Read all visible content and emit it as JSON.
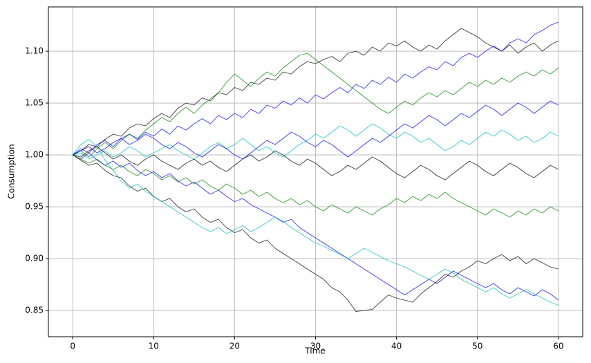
{
  "chart_data": {
    "type": "line",
    "xlabel": "Time",
    "ylabel": "Consumption",
    "x": [
      0,
      1,
      2,
      3,
      4,
      5,
      6,
      7,
      8,
      9,
      10,
      11,
      12,
      13,
      14,
      15,
      16,
      17,
      18,
      19,
      20,
      21,
      22,
      23,
      24,
      25,
      26,
      27,
      28,
      29,
      30,
      31,
      32,
      33,
      34,
      35,
      36,
      37,
      38,
      39,
      40,
      41,
      42,
      43,
      44,
      45,
      46,
      47,
      48,
      49,
      50,
      51,
      52,
      53,
      54,
      55,
      56,
      57,
      58,
      59,
      60
    ],
    "xlim": [
      -3,
      63
    ],
    "xticks": [
      0,
      10,
      20,
      30,
      40,
      50,
      60
    ],
    "ylim": [
      0.8247,
      1.1427
    ],
    "yticks": [
      0.85,
      {
        "value": 0.9,
        "label": "0.90"
      },
      0.95,
      {
        "value": 1.0,
        "label": "1.00"
      },
      1.05,
      {
        "value": 1.1,
        "label": "1.10"
      }
    ],
    "grid": true,
    "alpha": 0.7,
    "series": [
      {
        "color": "#000000",
        "values": [
          1.0,
          1.004,
          1.01,
          1.008,
          1.015,
          1.02,
          1.018,
          1.026,
          1.03,
          1.028,
          1.035,
          1.04,
          1.036,
          1.045,
          1.05,
          1.048,
          1.055,
          1.052,
          1.06,
          1.058,
          1.065,
          1.062,
          1.07,
          1.068,
          1.074,
          1.072,
          1.08,
          1.078,
          1.085,
          1.09,
          1.088,
          1.092,
          1.095,
          1.09,
          1.098,
          1.1,
          1.096,
          1.104,
          1.1,
          1.108,
          1.105,
          1.11,
          1.104,
          1.1,
          1.106,
          1.102,
          1.11,
          1.116,
          1.122,
          1.118,
          1.114,
          1.108,
          1.104,
          1.1,
          1.106,
          1.098,
          1.104,
          1.108,
          1.1,
          1.106,
          1.11
        ]
      },
      {
        "color": "#000000",
        "values": [
          1.0,
          0.995,
          0.99,
          0.992,
          0.985,
          0.98,
          0.978,
          0.97,
          0.965,
          0.968,
          0.96,
          0.955,
          0.958,
          0.95,
          0.945,
          0.948,
          0.94,
          0.935,
          0.938,
          0.93,
          0.925,
          0.928,
          0.92,
          0.915,
          0.918,
          0.91,
          0.905,
          0.9,
          0.895,
          0.89,
          0.885,
          0.88,
          0.872,
          0.868,
          0.86,
          0.849,
          0.85,
          0.851,
          0.858,
          0.865,
          0.862,
          0.86,
          0.858,
          0.866,
          0.872,
          0.878,
          0.885,
          0.882,
          0.888,
          0.892,
          0.898,
          0.895,
          0.9,
          0.904,
          0.898,
          0.902,
          0.895,
          0.9,
          0.896,
          0.892,
          0.89
        ]
      },
      {
        "color": "#0000ff",
        "values": [
          1.0,
          1.006,
          1.002,
          1.01,
          1.014,
          1.008,
          1.016,
          1.02,
          1.015,
          1.022,
          1.018,
          1.025,
          1.02,
          1.028,
          1.024,
          1.03,
          1.035,
          1.03,
          1.038,
          1.034,
          1.04,
          1.036,
          1.044,
          1.04,
          1.048,
          1.045,
          1.052,
          1.048,
          1.055,
          1.05,
          1.058,
          1.054,
          1.06,
          1.065,
          1.06,
          1.068,
          1.064,
          1.072,
          1.068,
          1.075,
          1.07,
          1.078,
          1.074,
          1.08,
          1.085,
          1.082,
          1.09,
          1.086,
          1.094,
          1.098,
          1.094,
          1.1,
          1.105,
          1.1,
          1.108,
          1.112,
          1.108,
          1.116,
          1.12,
          1.125,
          1.128
        ]
      },
      {
        "color": "#0000ff",
        "values": [
          1.0,
          0.996,
          1.002,
          0.995,
          0.99,
          0.994,
          0.988,
          0.992,
          0.985,
          0.98,
          0.984,
          0.978,
          0.982,
          0.975,
          0.97,
          0.974,
          0.968,
          0.962,
          0.966,
          0.96,
          0.955,
          0.958,
          0.952,
          0.948,
          0.944,
          0.94,
          0.935,
          0.938,
          0.93,
          0.925,
          0.92,
          0.915,
          0.91,
          0.905,
          0.9,
          0.895,
          0.89,
          0.885,
          0.88,
          0.875,
          0.87,
          0.865,
          0.87,
          0.875,
          0.88,
          0.876,
          0.882,
          0.888,
          0.884,
          0.88,
          0.876,
          0.872,
          0.876,
          0.87,
          0.866,
          0.872,
          0.868,
          0.864,
          0.87,
          0.866,
          0.86
        ]
      },
      {
        "color": "#00bfbf",
        "values": [
          1.0,
          1.01,
          1.015,
          1.008,
          0.995,
          0.985,
          0.975,
          0.968,
          0.972,
          0.965,
          0.96,
          0.955,
          0.95,
          0.945,
          0.94,
          0.935,
          0.93,
          0.926,
          0.93,
          0.924,
          0.928,
          0.932,
          0.926,
          0.93,
          0.935,
          0.94,
          0.936,
          0.93,
          0.925,
          0.92,
          0.915,
          0.912,
          0.908,
          0.904,
          0.9,
          0.905,
          0.91,
          0.906,
          0.902,
          0.898,
          0.895,
          0.892,
          0.888,
          0.884,
          0.88,
          0.885,
          0.89,
          0.886,
          0.88,
          0.876,
          0.872,
          0.868,
          0.872,
          0.866,
          0.862,
          0.866,
          0.87,
          0.866,
          0.862,
          0.858,
          0.855
        ]
      },
      {
        "color": "#008000",
        "values": [
          1.0,
          1.004,
          0.998,
          1.006,
          1.012,
          1.006,
          1.014,
          1.02,
          1.016,
          1.024,
          1.03,
          1.036,
          1.032,
          1.04,
          1.046,
          1.04,
          1.048,
          1.054,
          1.06,
          1.07,
          1.078,
          1.072,
          1.066,
          1.074,
          1.08,
          1.076,
          1.084,
          1.09,
          1.096,
          1.098,
          1.092,
          1.086,
          1.08,
          1.074,
          1.068,
          1.062,
          1.056,
          1.05,
          1.044,
          1.04,
          1.046,
          1.052,
          1.048,
          1.055,
          1.06,
          1.056,
          1.062,
          1.058,
          1.064,
          1.07,
          1.066,
          1.072,
          1.068,
          1.074,
          1.07,
          1.076,
          1.08,
          1.076,
          1.082,
          1.078,
          1.084
        ]
      },
      {
        "color": "#00bfbf",
        "values": [
          1.0,
          1.002,
          0.996,
          1.0,
          1.004,
          0.998,
          1.002,
          1.008,
          1.004,
          0.998,
          1.002,
          1.006,
          1.01,
          1.004,
          1.0,
          0.996,
          1.002,
          1.008,
          1.012,
          1.006,
          1.01,
          1.016,
          1.01,
          1.004,
          1.008,
          1.002,
          0.998,
          1.004,
          1.01,
          1.014,
          1.02,
          1.016,
          1.022,
          1.028,
          1.024,
          1.018,
          1.024,
          1.03,
          1.026,
          1.02,
          1.016,
          1.022,
          1.018,
          1.012,
          1.016,
          1.01,
          1.004,
          1.008,
          1.014,
          1.01,
          1.016,
          1.022,
          1.018,
          1.024,
          1.02,
          1.014,
          1.018,
          1.012,
          1.016,
          1.022,
          1.018
        ]
      },
      {
        "color": "#008000",
        "values": [
          1.0,
          0.996,
          0.992,
          0.996,
          0.99,
          0.986,
          0.99,
          0.984,
          0.98,
          0.986,
          0.982,
          0.976,
          0.98,
          0.974,
          0.978,
          0.972,
          0.976,
          0.97,
          0.966,
          0.972,
          0.968,
          0.962,
          0.966,
          0.96,
          0.964,
          0.958,
          0.954,
          0.958,
          0.952,
          0.956,
          0.95,
          0.946,
          0.952,
          0.948,
          0.944,
          0.95,
          0.946,
          0.942,
          0.948,
          0.952,
          0.958,
          0.954,
          0.96,
          0.956,
          0.962,
          0.958,
          0.964,
          0.958,
          0.954,
          0.95,
          0.946,
          0.942,
          0.948,
          0.944,
          0.94,
          0.946,
          0.942,
          0.948,
          0.944,
          0.95,
          0.946
        ]
      },
      {
        "color": "#000000",
        "values": [
          1.0,
          0.998,
          1.004,
          1.008,
          1.002,
          0.996,
          1.0,
          0.994,
          0.99,
          0.996,
          1.0,
          0.994,
          0.99,
          0.986,
          0.992,
          0.996,
          0.99,
          0.994,
          0.988,
          0.984,
          0.99,
          0.996,
          1.0,
          0.994,
          0.998,
          1.004,
          1.0,
          0.994,
          0.99,
          0.996,
          0.992,
          0.986,
          0.98,
          0.984,
          0.99,
          0.986,
          0.992,
          0.998,
          0.994,
          0.988,
          0.982,
          0.978,
          0.984,
          0.99,
          0.986,
          0.98,
          0.976,
          0.982,
          0.988,
          0.994,
          0.99,
          0.984,
          0.98,
          0.986,
          0.992,
          0.988,
          0.982,
          0.978,
          0.984,
          0.99,
          0.986
        ]
      },
      {
        "color": "#0000ff",
        "values": [
          1.0,
          1.004,
          1.008,
          1.002,
          1.006,
          1.012,
          1.016,
          1.01,
          1.014,
          1.02,
          1.016,
          1.01,
          1.006,
          1.012,
          1.008,
          1.002,
          0.998,
          1.004,
          1.01,
          1.006,
          1.0,
          0.996,
          1.002,
          1.008,
          1.014,
          1.01,
          1.016,
          1.022,
          1.018,
          1.012,
          1.008,
          1.014,
          1.01,
          1.004,
          0.998,
          1.004,
          1.01,
          1.016,
          1.012,
          1.018,
          1.024,
          1.03,
          1.026,
          1.032,
          1.038,
          1.034,
          1.028,
          1.034,
          1.04,
          1.036,
          1.042,
          1.048,
          1.044,
          1.038,
          1.044,
          1.05,
          1.046,
          1.04,
          1.046,
          1.052,
          1.048
        ]
      }
    ]
  }
}
